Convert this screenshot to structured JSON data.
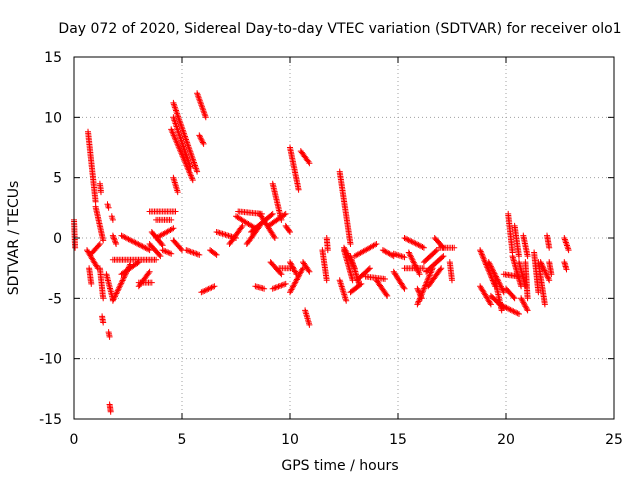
{
  "chart_data": {
    "type": "scatter",
    "title": "Day 072 of 2020, Sidereal Day-to-day VTEC variation (SDTVAR) for receiver olo1",
    "xlabel": "GPS time / hours",
    "ylabel": "SDTVAR / TECUs",
    "xlim": [
      0,
      25
    ],
    "ylim": [
      -15,
      15
    ],
    "xticks": [
      0,
      5,
      10,
      15,
      20,
      25
    ],
    "yticks": [
      -15,
      -10,
      -5,
      0,
      5,
      10,
      15
    ],
    "xtick_labels": [
      "0",
      "5",
      "10",
      "15",
      "20",
      "25"
    ],
    "ytick_labels": [
      "-15",
      "-10",
      "-5",
      "0",
      "5",
      "10",
      "15"
    ],
    "grid": true,
    "marker": "+",
    "color": "#ff0000",
    "segments": [
      {
        "x0": 0.0,
        "y0": 1.5,
        "x1": 0.05,
        "y1": -0.8
      },
      {
        "x0": 0.65,
        "y0": 8.8,
        "x1": 1.0,
        "y1": 3.0
      },
      {
        "x0": 0.6,
        "y0": -1.0,
        "x1": 1.1,
        "y1": -2.5
      },
      {
        "x0": 0.7,
        "y0": -2.5,
        "x1": 0.8,
        "y1": -3.8
      },
      {
        "x0": 0.8,
        "y0": -1.3,
        "x1": 1.2,
        "y1": -0.5
      },
      {
        "x0": 1.0,
        "y0": 2.6,
        "x1": 1.35,
        "y1": -0.2
      },
      {
        "x0": 1.2,
        "y0": 4.5,
        "x1": 1.25,
        "y1": 3.8
      },
      {
        "x0": 1.2,
        "y0": -2.5,
        "x1": 1.35,
        "y1": -5.0
      },
      {
        "x0": 1.3,
        "y0": -6.5,
        "x1": 1.35,
        "y1": -7.0
      },
      {
        "x0": 1.5,
        "y0": -3.0,
        "x1": 1.8,
        "y1": -5.1
      },
      {
        "x0": 1.55,
        "y0": 2.8,
        "x1": 1.6,
        "y1": 2.5
      },
      {
        "x0": 1.6,
        "y0": -7.8,
        "x1": 1.65,
        "y1": -8.2
      },
      {
        "x0": 1.65,
        "y0": -13.8,
        "x1": 1.7,
        "y1": -14.4
      },
      {
        "x0": 1.75,
        "y0": 1.8,
        "x1": 1.8,
        "y1": 1.5
      },
      {
        "x0": 1.8,
        "y0": 0.2,
        "x1": 1.95,
        "y1": -0.5
      },
      {
        "x0": 1.8,
        "y0": -5.2,
        "x1": 2.6,
        "y1": -2.2
      },
      {
        "x0": 2.2,
        "y0": 0.2,
        "x1": 3.5,
        "y1": -1.0
      },
      {
        "x0": 1.8,
        "y0": -1.8,
        "x1": 3.8,
        "y1": -1.8
      },
      {
        "x0": 2.2,
        "y0": -3.0,
        "x1": 3.0,
        "y1": -2.0
      },
      {
        "x0": 3.0,
        "y0": -4.0,
        "x1": 3.5,
        "y1": -2.8
      },
      {
        "x0": 3.0,
        "y0": -3.7,
        "x1": 3.6,
        "y1": -3.7
      },
      {
        "x0": 3.5,
        "y0": -0.5,
        "x1": 4.0,
        "y1": -1.5
      },
      {
        "x0": 3.5,
        "y0": 2.2,
        "x1": 4.7,
        "y1": 2.2
      },
      {
        "x0": 3.6,
        "y0": 0.5,
        "x1": 4.1,
        "y1": -0.6
      },
      {
        "x0": 3.8,
        "y0": 0.0,
        "x1": 4.6,
        "y1": 0.8
      },
      {
        "x0": 3.8,
        "y0": 1.5,
        "x1": 4.5,
        "y1": 1.5
      },
      {
        "x0": 4.1,
        "y0": -1.0,
        "x1": 4.5,
        "y1": -1.3
      },
      {
        "x0": 4.6,
        "y0": 11.2,
        "x1": 5.7,
        "y1": 5.5
      },
      {
        "x0": 4.6,
        "y0": 10.0,
        "x1": 5.4,
        "y1": 5.8
      },
      {
        "x0": 4.5,
        "y0": 9.0,
        "x1": 5.5,
        "y1": 4.8
      },
      {
        "x0": 4.6,
        "y0": 5.0,
        "x1": 4.8,
        "y1": 3.8
      },
      {
        "x0": 4.6,
        "y0": -0.2,
        "x1": 5.0,
        "y1": -1.0
      },
      {
        "x0": 5.2,
        "y0": -1.0,
        "x1": 5.8,
        "y1": -1.4
      },
      {
        "x0": 5.7,
        "y0": 12.0,
        "x1": 6.1,
        "y1": 10.0
      },
      {
        "x0": 5.8,
        "y0": 8.5,
        "x1": 6.0,
        "y1": 7.8
      },
      {
        "x0": 5.9,
        "y0": -4.5,
        "x1": 6.5,
        "y1": -4.0
      },
      {
        "x0": 6.3,
        "y0": -1.0,
        "x1": 6.6,
        "y1": -1.4
      },
      {
        "x0": 6.6,
        "y0": 0.5,
        "x1": 7.5,
        "y1": 0.0
      },
      {
        "x0": 7.2,
        "y0": -0.5,
        "x1": 7.8,
        "y1": 1.0
      },
      {
        "x0": 7.5,
        "y0": 1.8,
        "x1": 8.4,
        "y1": 0.8
      },
      {
        "x0": 7.6,
        "y0": 2.2,
        "x1": 8.7,
        "y1": 2.0
      },
      {
        "x0": 8.0,
        "y0": -0.5,
        "x1": 8.6,
        "y1": 1.0
      },
      {
        "x0": 8.2,
        "y0": 0.5,
        "x1": 9.2,
        "y1": 2.0
      },
      {
        "x0": 8.4,
        "y0": -4.0,
        "x1": 8.8,
        "y1": -4.2
      },
      {
        "x0": 8.6,
        "y0": 2.0,
        "x1": 9.3,
        "y1": 0.0
      },
      {
        "x0": 9.0,
        "y0": 1.0,
        "x1": 9.8,
        "y1": 2.0
      },
      {
        "x0": 9.2,
        "y0": 4.5,
        "x1": 9.6,
        "y1": 1.5
      },
      {
        "x0": 9.1,
        "y0": -2.0,
        "x1": 9.6,
        "y1": -3.0
      },
      {
        "x0": 9.2,
        "y0": -4.2,
        "x1": 9.8,
        "y1": -3.8
      },
      {
        "x0": 9.5,
        "y0": -2.5,
        "x1": 10.1,
        "y1": -2.5
      },
      {
        "x0": 9.8,
        "y0": 1.0,
        "x1": 10.0,
        "y1": 0.5
      },
      {
        "x0": 10.0,
        "y0": 7.5,
        "x1": 10.4,
        "y1": 4.0
      },
      {
        "x0": 10.0,
        "y0": -2.0,
        "x1": 10.3,
        "y1": -3.0
      },
      {
        "x0": 10.0,
        "y0": -4.5,
        "x1": 10.6,
        "y1": -2.5
      },
      {
        "x0": 10.5,
        "y0": 7.2,
        "x1": 10.9,
        "y1": 6.2
      },
      {
        "x0": 10.6,
        "y0": -2.0,
        "x1": 10.9,
        "y1": -2.8
      },
      {
        "x0": 10.7,
        "y0": -6.0,
        "x1": 10.9,
        "y1": -7.2
      },
      {
        "x0": 11.5,
        "y0": -1.0,
        "x1": 11.7,
        "y1": -3.5
      },
      {
        "x0": 11.7,
        "y0": 0.0,
        "x1": 11.75,
        "y1": -1.0
      },
      {
        "x0": 12.3,
        "y0": 5.5,
        "x1": 12.8,
        "y1": -0.5
      },
      {
        "x0": 12.3,
        "y0": -3.5,
        "x1": 12.6,
        "y1": -5.2
      },
      {
        "x0": 12.5,
        "y0": -1.0,
        "x1": 12.9,
        "y1": -3.5
      },
      {
        "x0": 12.5,
        "y0": -0.8,
        "x1": 13.0,
        "y1": -2.5
      },
      {
        "x0": 12.8,
        "y0": -1.5,
        "x1": 13.2,
        "y1": -3.8
      },
      {
        "x0": 12.8,
        "y0": -4.5,
        "x1": 13.3,
        "y1": -3.8
      },
      {
        "x0": 13.0,
        "y0": -1.5,
        "x1": 14.0,
        "y1": -0.5
      },
      {
        "x0": 13.1,
        "y0": -3.5,
        "x1": 13.7,
        "y1": -2.5
      },
      {
        "x0": 13.5,
        "y0": -3.2,
        "x1": 14.4,
        "y1": -3.4
      },
      {
        "x0": 14.0,
        "y0": -3.5,
        "x1": 14.5,
        "y1": -4.8
      },
      {
        "x0": 14.3,
        "y0": -1.0,
        "x1": 14.8,
        "y1": -1.5
      },
      {
        "x0": 14.8,
        "y0": -1.3,
        "x1": 15.3,
        "y1": -1.6
      },
      {
        "x0": 14.8,
        "y0": -2.8,
        "x1": 15.3,
        "y1": -4.2
      },
      {
        "x0": 15.3,
        "y0": 0.0,
        "x1": 16.2,
        "y1": -0.8
      },
      {
        "x0": 15.3,
        "y0": -2.5,
        "x1": 16.2,
        "y1": -2.5
      },
      {
        "x0": 15.5,
        "y0": -1.2,
        "x1": 16.0,
        "y1": -3.0
      },
      {
        "x0": 15.9,
        "y0": -4.2,
        "x1": 16.1,
        "y1": -5.0
      },
      {
        "x0": 15.9,
        "y0": -5.5,
        "x1": 16.6,
        "y1": -2.5
      },
      {
        "x0": 16.2,
        "y0": -2.0,
        "x1": 16.8,
        "y1": -1.0
      },
      {
        "x0": 16.3,
        "y0": -2.8,
        "x1": 17.1,
        "y1": -1.5
      },
      {
        "x0": 16.4,
        "y0": -4.0,
        "x1": 17.0,
        "y1": -2.5
      },
      {
        "x0": 16.7,
        "y0": 0.0,
        "x1": 17.1,
        "y1": -0.8
      },
      {
        "x0": 16.9,
        "y0": -0.8,
        "x1": 17.6,
        "y1": -0.8
      },
      {
        "x0": 17.4,
        "y0": -2.0,
        "x1": 17.5,
        "y1": -3.5
      },
      {
        "x0": 18.8,
        "y0": -1.0,
        "x1": 19.5,
        "y1": -4.0
      },
      {
        "x0": 18.8,
        "y0": -4.0,
        "x1": 19.3,
        "y1": -5.5
      },
      {
        "x0": 19.2,
        "y0": -2.0,
        "x1": 19.9,
        "y1": -4.5
      },
      {
        "x0": 19.3,
        "y0": -4.8,
        "x1": 19.9,
        "y1": -5.8
      },
      {
        "x0": 19.5,
        "y0": -3.5,
        "x1": 19.8,
        "y1": -6.0
      },
      {
        "x0": 19.7,
        "y0": -5.5,
        "x1": 20.6,
        "y1": -6.3
      },
      {
        "x0": 19.9,
        "y0": -3.0,
        "x1": 20.6,
        "y1": -3.2
      },
      {
        "x0": 20.0,
        "y0": -4.2,
        "x1": 20.4,
        "y1": -5.0
      },
      {
        "x0": 20.1,
        "y0": 2.0,
        "x1": 20.3,
        "y1": -1.2
      },
      {
        "x0": 20.3,
        "y0": -1.5,
        "x1": 20.7,
        "y1": -4.0
      },
      {
        "x0": 20.4,
        "y0": 1.0,
        "x1": 20.6,
        "y1": -1.5
      },
      {
        "x0": 20.6,
        "y0": -2.0,
        "x1": 20.9,
        "y1": -4.0
      },
      {
        "x0": 20.7,
        "y0": -5.0,
        "x1": 21.0,
        "y1": -6.0
      },
      {
        "x0": 20.8,
        "y0": 0.2,
        "x1": 21.0,
        "y1": -1.5
      },
      {
        "x0": 20.9,
        "y0": -2.0,
        "x1": 21.0,
        "y1": -5.0
      },
      {
        "x0": 21.3,
        "y0": -1.2,
        "x1": 21.5,
        "y1": -4.5
      },
      {
        "x0": 21.5,
        "y0": -2.0,
        "x1": 21.8,
        "y1": -5.5
      },
      {
        "x0": 21.6,
        "y0": -2.0,
        "x1": 22.0,
        "y1": -3.5
      },
      {
        "x0": 21.9,
        "y0": 0.2,
        "x1": 22.0,
        "y1": -0.8
      },
      {
        "x0": 22.0,
        "y0": -2.0,
        "x1": 22.1,
        "y1": -3.0
      },
      {
        "x0": 22.7,
        "y0": 0.0,
        "x1": 22.9,
        "y1": -1.0
      },
      {
        "x0": 22.7,
        "y0": -2.0,
        "x1": 22.8,
        "y1": -2.6
      }
    ]
  }
}
